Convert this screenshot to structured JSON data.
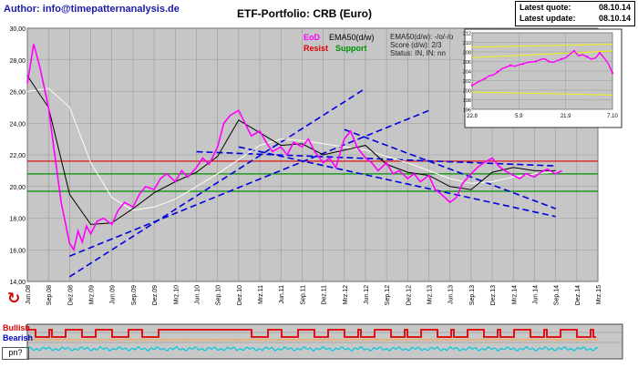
{
  "header": {
    "author": "Author: info@timepatternanalysis.de",
    "title": "ETF-Portfolio: CRB (Euro)",
    "latest_quote_label": "Latest quote:",
    "latest_quote_value": "08.10.14",
    "latest_update_label": "Latest update:",
    "latest_update_value": "08.10.14"
  },
  "legend": {
    "eod": "EoD",
    "ema": "EMA50(d/w)",
    "resist": "Resist",
    "support": "Support",
    "ema_trend": "EMA50(d/w): -/o/-/o",
    "score": "Score (d/w): 2/3",
    "status": "Status: IN, IN: nn"
  },
  "colors": {
    "plot_bg": "#c6c6c6",
    "price": "#ff00ff",
    "ema": "#000000",
    "slow_avg": "#fffff0",
    "resist": "#e00000",
    "support": "#009000",
    "channel": "#0000e0",
    "bullish": "#e00000",
    "bearish": "#0000c0"
  },
  "indicator": {
    "bullish_label": "Bullish",
    "bearish_label": "Bearish",
    "pn_label": "pn?"
  },
  "chart_data": [
    {
      "type": "line",
      "title": "ETF-Portfolio: CRB (Euro)",
      "ylim": [
        14,
        30
      ],
      "y_ticks": [
        "30,00",
        "28,00",
        "26,00",
        "24,00",
        "22,00",
        "20,00",
        "18,00",
        "16,00",
        "14,00"
      ],
      "x_tick_labels": [
        "Jun.08",
        "Sep.08",
        "Dez.08",
        "Mrz.09",
        "Jun.09",
        "Sep.09",
        "Dez.09",
        "Mrz.10",
        "Jun.10",
        "Sep.10",
        "Dez.10",
        "Mrz.11",
        "Jun.11",
        "Sep.11",
        "Dez.11",
        "Mrz.12",
        "Jun.12",
        "Sep.12",
        "Dez.12",
        "Mrz.13",
        "Jun.13",
        "Sep.13",
        "Dez.13",
        "Mrz.14",
        "Jun.14",
        "Sep.14",
        "Dez.14",
        "Mrz.15"
      ],
      "grid": true,
      "series": [
        {
          "name": "EoD",
          "x": [
            0,
            0.3,
            0.6,
            1.0,
            1.3,
            1.6,
            2.0,
            2.2,
            2.4,
            2.6,
            2.8,
            3.0,
            3.3,
            3.6,
            4.0,
            4.3,
            4.6,
            5.0,
            5.3,
            5.6,
            6.0,
            6.3,
            6.6,
            7.0,
            7.3,
            7.6,
            8.0,
            8.3,
            8.6,
            9.0,
            9.3,
            9.6,
            10.0,
            10.3,
            10.6,
            11.0,
            11.3,
            11.6,
            12.0,
            12.3,
            12.6,
            13.0,
            13.3,
            13.6,
            14.0,
            14.3,
            14.6,
            15.0,
            15.3,
            15.6,
            16.0,
            16.3,
            16.6,
            17.0,
            17.3,
            17.6,
            18.0,
            18.3,
            18.6,
            19.0,
            19.3,
            19.6,
            20.0,
            20.3,
            20.6,
            21.0,
            21.3,
            21.6,
            22.0,
            22.3,
            22.6,
            23.0,
            23.3,
            23.6,
            24.0,
            24.3,
            24.6,
            25.0,
            25.3
          ],
          "values": [
            26.5,
            29.0,
            27.5,
            25.0,
            22.0,
            19.0,
            16.4,
            16.0,
            17.2,
            16.5,
            17.5,
            17.0,
            17.8,
            18.0,
            17.6,
            18.5,
            19.0,
            18.7,
            19.5,
            20.0,
            19.8,
            20.5,
            20.8,
            20.3,
            21.0,
            20.6,
            21.2,
            21.8,
            21.4,
            22.5,
            24.0,
            24.5,
            24.8,
            24.0,
            23.2,
            23.5,
            22.8,
            22.2,
            22.5,
            22.0,
            22.8,
            22.5,
            23.0,
            22.2,
            21.5,
            21.8,
            21.2,
            23.0,
            23.5,
            22.5,
            21.8,
            21.5,
            21.0,
            21.5,
            20.8,
            21.0,
            20.5,
            20.8,
            20.3,
            20.7,
            19.8,
            19.5,
            19.0,
            19.3,
            20.2,
            20.8,
            21.2,
            21.5,
            21.8,
            21.3,
            21.0,
            20.7,
            20.5,
            20.8,
            20.6,
            20.9,
            21.1,
            20.8,
            21.0
          ]
        },
        {
          "name": "EMA50(d/w)",
          "x": [
            0,
            1,
            2,
            3,
            4,
            5,
            6,
            7,
            8,
            9,
            10,
            11,
            12,
            13,
            14,
            15,
            16,
            17,
            18,
            19,
            20,
            21,
            22,
            23,
            24,
            25
          ],
          "values": [
            27.0,
            25.0,
            19.5,
            17.6,
            17.7,
            18.6,
            19.6,
            20.3,
            20.9,
            21.9,
            24.2,
            23.4,
            22.6,
            22.7,
            22.0,
            22.3,
            22.6,
            21.4,
            20.9,
            20.7,
            20.0,
            19.8,
            20.9,
            21.2,
            21.0,
            21.0
          ]
        },
        {
          "name": "",
          "x": [
            0,
            1,
            2,
            3,
            4,
            5,
            6,
            7,
            8,
            9,
            10,
            11,
            12,
            13,
            14,
            15,
            16,
            17,
            18,
            19,
            20,
            21,
            22,
            23,
            24,
            25
          ],
          "values": [
            26.0,
            26.2,
            25.0,
            21.5,
            19.3,
            18.5,
            18.7,
            19.2,
            20.0,
            20.8,
            21.7,
            22.6,
            23.0,
            22.9,
            22.7,
            22.5,
            22.3,
            21.9,
            21.5,
            21.0,
            20.5,
            20.2,
            20.3,
            20.6,
            20.8,
            20.9
          ]
        }
      ],
      "levels": [
        {
          "name": "Resist",
          "value": 21.6
        },
        {
          "name": "Support",
          "value": 20.8
        },
        {
          "name": "Support",
          "value": 19.7
        }
      ]
    },
    {
      "type": "line",
      "title": "",
      "x_tick_labels": [
        "22.8",
        "5.9",
        "21.9",
        "7.10"
      ],
      "y_tick_labels": [
        "212",
        "210",
        "208",
        "206",
        "204",
        "202",
        "200",
        "198",
        "196"
      ],
      "ylim": [
        196,
        212
      ],
      "grid": true,
      "series": [
        {
          "name": "EoD",
          "x": [
            0,
            1,
            2,
            3,
            4,
            5,
            6,
            7,
            8,
            9,
            10,
            11,
            12,
            13,
            14,
            15,
            16,
            17,
            18,
            19,
            20,
            21,
            22,
            23,
            24,
            25,
            26,
            27,
            28,
            29,
            30,
            31,
            32,
            33
          ],
          "values": [
            201.0,
            201.5,
            202.0,
            202.4,
            203.0,
            203.2,
            203.8,
            204.5,
            204.8,
            205.2,
            205.0,
            205.3,
            205.5,
            205.8,
            205.9,
            206.0,
            206.4,
            206.6,
            206.0,
            205.8,
            206.2,
            206.5,
            206.8,
            207.5,
            208.2,
            207.2,
            207.4,
            207.0,
            206.5,
            206.7,
            207.8,
            206.8,
            205.6,
            203.6
          ]
        },
        {
          "name": "",
          "x": [
            0,
            33
          ],
          "values": [
            209.0,
            209.6
          ]
        },
        {
          "name": "",
          "x": [
            0,
            33
          ],
          "values": [
            199.6,
            199.0
          ]
        },
        {
          "name": "",
          "x": [
            0,
            33
          ],
          "values": [
            206.8,
            208.2
          ]
        }
      ]
    }
  ]
}
